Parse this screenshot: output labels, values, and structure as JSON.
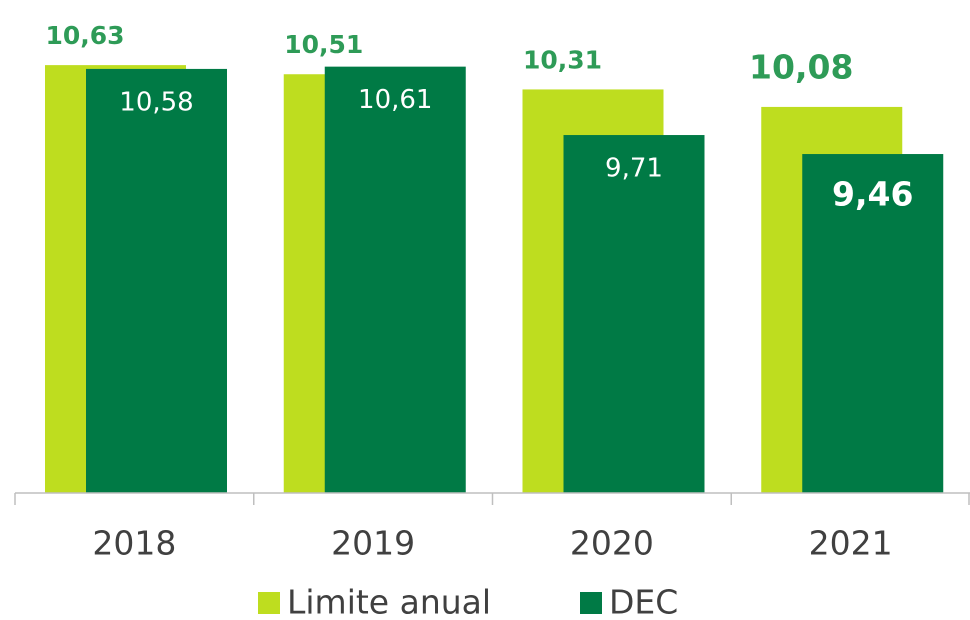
{
  "chart_data": {
    "type": "bar",
    "categories": [
      "2018",
      "2019",
      "2020",
      "2021"
    ],
    "series": [
      {
        "name": "Limite anual",
        "color": "#bedd1f",
        "values": [
          10.63,
          10.51,
          10.31,
          10.08
        ],
        "value_labels": [
          "10,63",
          "10,51",
          "10,31",
          "10,08"
        ]
      },
      {
        "name": "DEC",
        "color": "#007a45",
        "values": [
          10.58,
          10.61,
          9.71,
          9.46
        ],
        "value_labels": [
          "10,58",
          "10,61",
          "9,71",
          "9,46"
        ]
      }
    ],
    "ylim": [
      5,
      11
    ],
    "legend": "bottom"
  }
}
